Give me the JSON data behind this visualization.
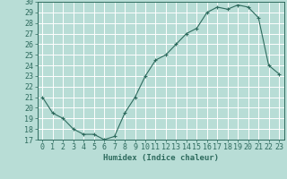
{
  "x": [
    0,
    1,
    2,
    3,
    4,
    5,
    6,
    7,
    8,
    9,
    10,
    11,
    12,
    13,
    14,
    15,
    16,
    17,
    18,
    19,
    20,
    21,
    22,
    23
  ],
  "y": [
    21,
    19.5,
    19,
    18,
    17.5,
    17.5,
    17,
    17.3,
    19.5,
    21,
    23,
    24.5,
    25,
    26,
    27,
    27.5,
    29,
    29.5,
    29.3,
    29.7,
    29.5,
    28.5,
    24,
    23.2
  ],
  "line_color": "#2e6b5e",
  "marker": "+",
  "marker_color": "#2e6b5e",
  "bg_color": "#b8ddd6",
  "grid_color": "#ffffff",
  "xlabel": "Humidex (Indice chaleur)",
  "xlabel_fontsize": 6.5,
  "tick_label_fontsize": 6,
  "ylim": [
    17,
    30
  ],
  "yticks": [
    17,
    18,
    19,
    20,
    21,
    22,
    23,
    24,
    25,
    26,
    27,
    28,
    29,
    30
  ],
  "xticks": [
    0,
    1,
    2,
    3,
    4,
    5,
    6,
    7,
    8,
    9,
    10,
    11,
    12,
    13,
    14,
    15,
    16,
    17,
    18,
    19,
    20,
    21,
    22,
    23
  ],
  "xlim": [
    -0.5,
    23.5
  ]
}
